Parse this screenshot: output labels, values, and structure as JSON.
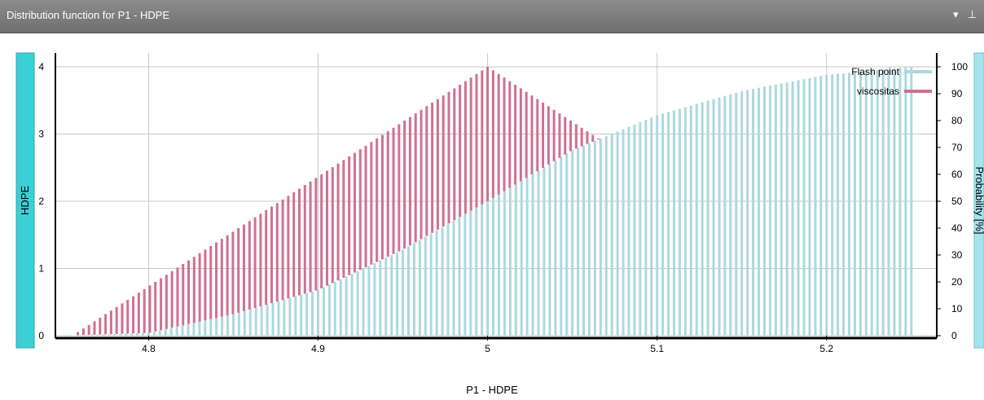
{
  "window": {
    "title": "Distribution function for P1 - HDPE",
    "dropdown_icon": "triangle-down-icon",
    "pin_icon": "pin-icon"
  },
  "colors": {
    "flash_point": "#add8e0",
    "viscositas": "#d07090",
    "side_panel": "#3ccfd6",
    "side_panel_right": "#a6e3ea"
  },
  "chart_data": {
    "type": "bar",
    "title": "",
    "xlabel": "P1 - HDPE",
    "ylabel_left": "HDPE",
    "ylabel_right": "Probability [%]",
    "xlim": [
      4.745,
      5.265
    ],
    "ylim_left": [
      0,
      4
    ],
    "ylim_right": [
      0,
      100
    ],
    "x_ticks": [
      "4.8",
      "4.9",
      "5",
      "5.1",
      "5.2"
    ],
    "y_ticks_left": [
      "0",
      "1",
      "2",
      "3",
      "4"
    ],
    "y_ticks_right": [
      "0",
      "10",
      "20",
      "30",
      "40",
      "50",
      "60",
      "70",
      "80",
      "90",
      "100"
    ],
    "grid": true,
    "legend_position": "top-right",
    "series": [
      {
        "name": "Flash point",
        "axis": "right",
        "x_range": [
          4.75,
          5.25
        ],
        "points": [
          [
            4.75,
            0
          ],
          [
            4.8,
            1
          ],
          [
            4.85,
            8
          ],
          [
            4.9,
            17
          ],
          [
            4.95,
            32
          ],
          [
            5.0,
            50
          ],
          [
            5.05,
            69
          ],
          [
            5.1,
            82
          ],
          [
            5.15,
            91
          ],
          [
            5.2,
            97
          ],
          [
            5.25,
            100
          ]
        ]
      },
      {
        "name": "viscositas",
        "axis": "left",
        "x_range": [
          4.755,
          5.245
        ],
        "peak_x": 5.0,
        "peak_value": 4,
        "shape": "triangular"
      }
    ]
  }
}
